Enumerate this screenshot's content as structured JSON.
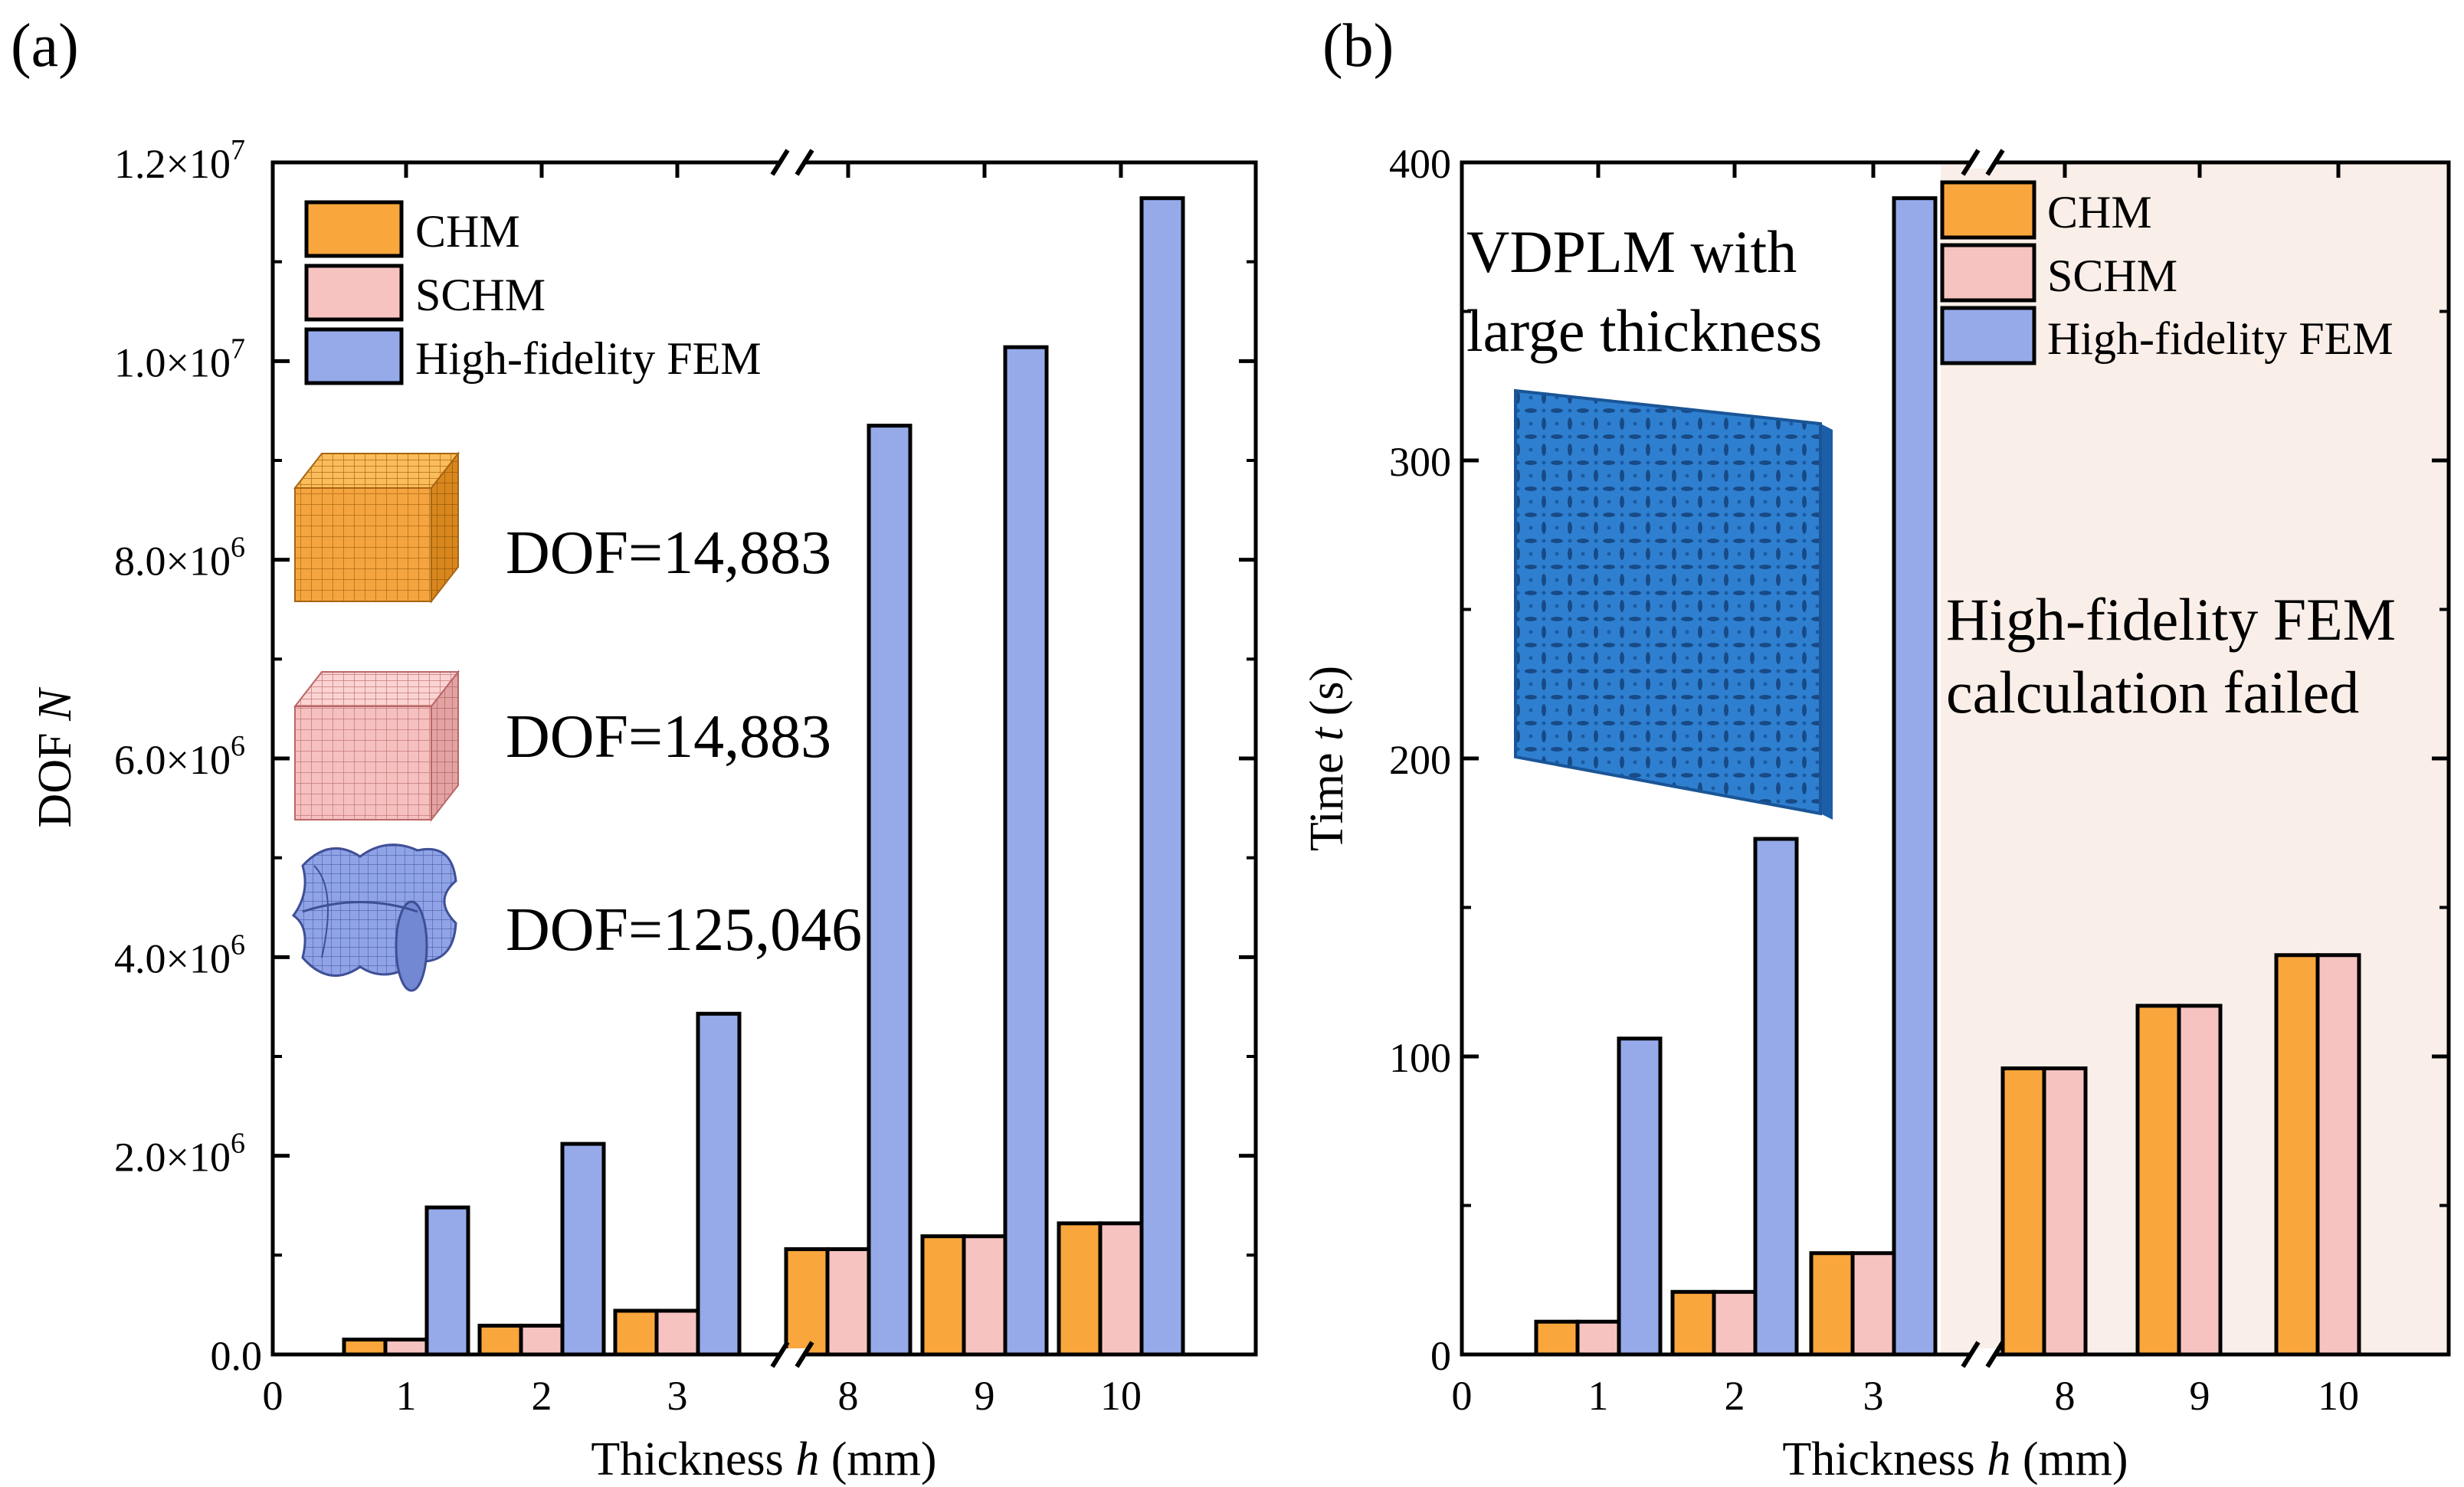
{
  "chart_data": [
    {
      "panel_label": "(a)",
      "type": "bar",
      "title": "",
      "xlabel_prefix": "Thickness ",
      "xlabel_var": "h",
      "xlabel_suffix": " (mm)",
      "ylabel_prefix": "DOF ",
      "ylabel_var": "N",
      "categories": [
        "1",
        "2",
        "3",
        "8",
        "9",
        "10"
      ],
      "x_zero_tick": "0",
      "ylim": [
        0,
        12000000
      ],
      "y_ticks": [
        {
          "value": 0,
          "label": "0.0"
        },
        {
          "value": 2000000,
          "label": "2.0×10",
          "exp": "6"
        },
        {
          "value": 4000000,
          "label": "4.0×10",
          "exp": "6"
        },
        {
          "value": 6000000,
          "label": "6.0×10",
          "exp": "6"
        },
        {
          "value": 8000000,
          "label": "8.0×10",
          "exp": "6"
        },
        {
          "value": 10000000,
          "label": "1.0×10",
          "exp": "7"
        },
        {
          "value": 12000000,
          "label": "1.2×10",
          "exp": "7"
        }
      ],
      "series": [
        {
          "name": "CHM",
          "color": "#f9a63c",
          "values": [
            150000,
            290000,
            440000,
            1060000,
            1190000,
            1320000
          ]
        },
        {
          "name": "SCHM",
          "color": "#f7c3c0",
          "values": [
            150000,
            290000,
            440000,
            1060000,
            1190000,
            1320000
          ]
        },
        {
          "name": "High-fidelity FEM",
          "color": "#96aaea",
          "values": [
            1480000,
            2120000,
            3430000,
            9350000,
            10140000,
            11640000
          ]
        }
      ],
      "legend_position": "top-left",
      "axis_break": "between 3 and 8",
      "annotations": [
        {
          "icon": "chm-mesh-cube-icon",
          "text": "DOF=14,883"
        },
        {
          "icon": "schm-mesh-cube-icon",
          "text": "DOF=14,883"
        },
        {
          "icon": "fem-unit-cell-icon",
          "text": "DOF=125,046"
        }
      ]
    },
    {
      "panel_label": "(b)",
      "type": "bar",
      "title": "",
      "xlabel_prefix": "Thickness ",
      "xlabel_var": "h",
      "xlabel_suffix": " (mm)",
      "ylabel_prefix": "Time ",
      "ylabel_var": "t",
      "ylabel_suffix": " (s)",
      "categories": [
        "1",
        "2",
        "3",
        "8",
        "9",
        "10"
      ],
      "x_zero_tick": "0",
      "ylim": [
        0,
        400
      ],
      "y_ticks": [
        {
          "value": 0,
          "label": "0"
        },
        {
          "value": 100,
          "label": "100"
        },
        {
          "value": 200,
          "label": "200"
        },
        {
          "value": 300,
          "label": "300"
        },
        {
          "value": 400,
          "label": "400"
        }
      ],
      "series": [
        {
          "name": "CHM",
          "color": "#f9a63c",
          "values": [
            11,
            21,
            34,
            96,
            117,
            134
          ]
        },
        {
          "name": "SCHM",
          "color": "#f7c3c0",
          "values": [
            11,
            21,
            34,
            96,
            117,
            134
          ]
        },
        {
          "name": "High-fidelity FEM",
          "color": "#96aaea",
          "values": [
            106,
            173,
            388,
            null,
            null,
            null
          ]
        }
      ],
      "legend_position": "top-right",
      "axis_break": "between 3 and 8",
      "shaded_region_color": "#f9eee8",
      "annotations": [
        {
          "lines": [
            "VDPLM with",
            "large thickness"
          ]
        },
        {
          "lines": [
            "High-fidelity FEM",
            "calculation failed"
          ]
        }
      ]
    }
  ]
}
